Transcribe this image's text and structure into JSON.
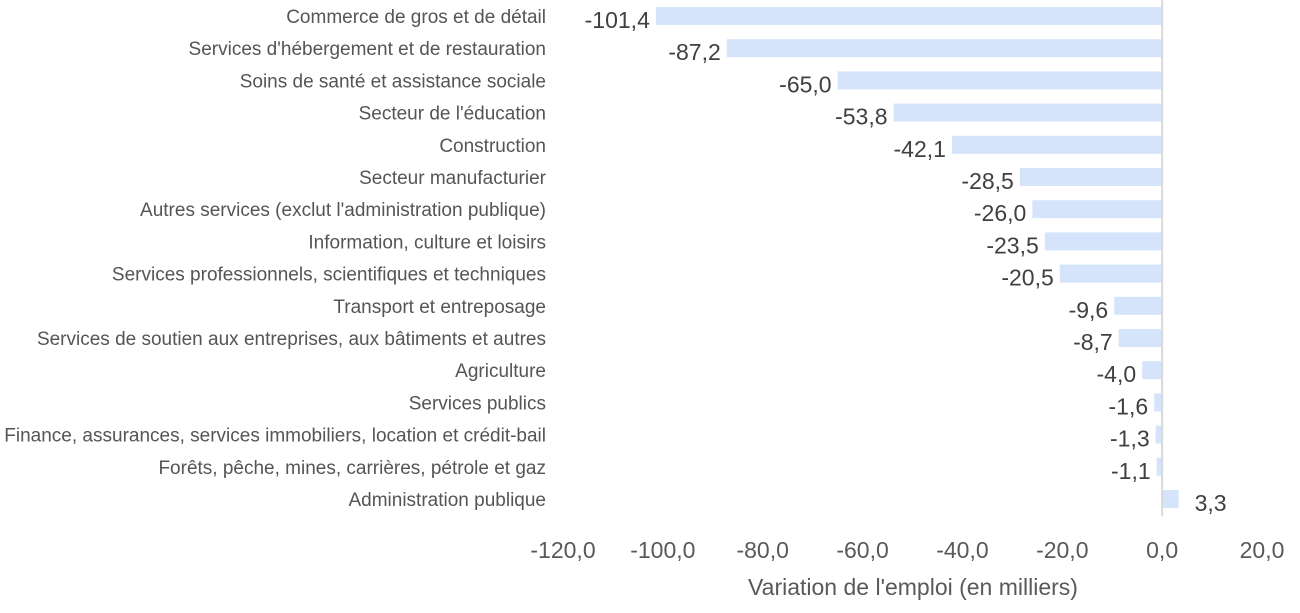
{
  "chart_data": {
    "type": "bar",
    "orientation": "horizontal",
    "categories": [
      "Commerce de gros et de détail",
      "Services d'hébergement et de restauration",
      "Soins de santé et assistance sociale",
      "Secteur de l'éducation",
      "Construction",
      "Secteur manufacturier",
      "Autres services (exclut l'administration publique)",
      "Information, culture et loisirs",
      "Services professionnels, scientifiques et techniques",
      "Transport et entreposage",
      "Services de soutien aux entreprises, aux bâtiments et autres",
      "Agriculture",
      "Services publics",
      "Finance, assurances, services immobiliers, location et crédit-bail",
      "Forêts, pêche, mines, carrières, pétrole et gaz",
      "Administration publique"
    ],
    "values": [
      -101.4,
      -87.2,
      -65.0,
      -53.8,
      -42.1,
      -28.5,
      -26.0,
      -23.5,
      -20.5,
      -9.6,
      -8.7,
      -4.0,
      -1.6,
      -1.3,
      -1.1,
      3.3
    ],
    "value_labels": [
      "-101,4",
      "-87,2",
      "-65,0",
      "-53,8",
      "-42,1",
      "-28,5",
      "-26,0",
      "-23,5",
      "-20,5",
      "-9,6",
      "-8,7",
      "-4,0",
      "-1,6",
      "-1,3",
      "-1,1",
      "3,3"
    ],
    "xlabel": "Variation de l'emploi (en milliers)",
    "ylabel": "",
    "xlim": [
      -120,
      20
    ],
    "xticks": [
      -120,
      -100,
      -80,
      -60,
      -40,
      -20,
      0,
      20
    ],
    "xtick_labels": [
      "-120,0",
      "-100,0",
      "-80,0",
      "-60,0",
      "-40,0",
      "-20,0",
      "0,0",
      "20,0"
    ],
    "bar_color": "#d6e4fb",
    "zero_line_color": "#d9d9d9",
    "grid": false,
    "legend": "none"
  }
}
